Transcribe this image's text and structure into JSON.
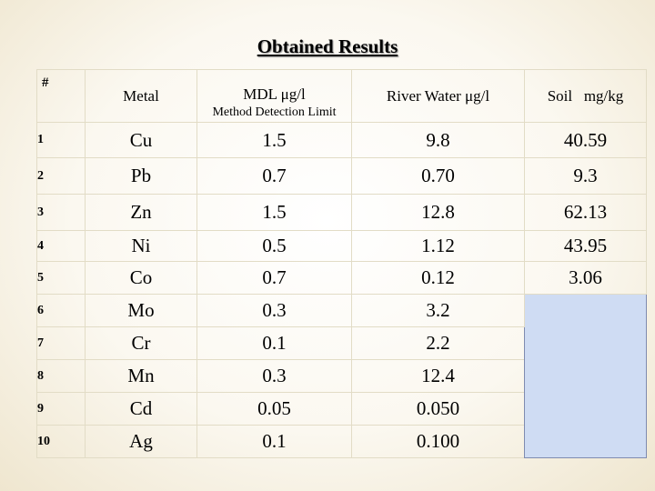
{
  "title": "Obtained Results",
  "headers": {
    "serial": "#",
    "metal": "Metal",
    "mdl": "MDL μg/l",
    "mdl_sub": "Method Detection Limit",
    "river": "River Water μg/l",
    "soil": "Soil   mg/kg"
  },
  "rows": [
    {
      "no": "1",
      "metal": "Cu",
      "mdl": "1.5",
      "river": "9.8",
      "soil": "40.59"
    },
    {
      "no": "2",
      "metal": "Pb",
      "mdl": "0.7",
      "river": "0.70",
      "soil": "9.3"
    },
    {
      "no": "3",
      "metal": "Zn",
      "mdl": "1.5",
      "river": "12.8",
      "soil": "62.13"
    },
    {
      "no": "4",
      "metal": "Ni",
      "mdl": "0.5",
      "river": "1.12",
      "soil": "43.95"
    },
    {
      "no": "5",
      "metal": "Co",
      "mdl": "0.7",
      "river": "0.12",
      "soil": "3.06"
    },
    {
      "no": "6",
      "metal": "Mo",
      "mdl": "0.3",
      "river": "3.2",
      "soil": ""
    },
    {
      "no": "7",
      "metal": "Cr",
      "mdl": "0.1",
      "river": "2.2",
      "soil": ""
    },
    {
      "no": "8",
      "metal": "Mn",
      "mdl": "0.3",
      "river": "12.4",
      "soil": ""
    },
    {
      "no": "9",
      "metal": "Cd",
      "mdl": "0.05",
      "river": "0.050",
      "soil": ""
    },
    {
      "no": "10",
      "metal": "Ag",
      "mdl": "0.1",
      "river": "0.100",
      "soil": ""
    }
  ],
  "colors": {
    "background": "#fbf8f0",
    "soil_blank_fill": "#cfdcf3",
    "soil_blank_border": "#7f8bb0"
  }
}
